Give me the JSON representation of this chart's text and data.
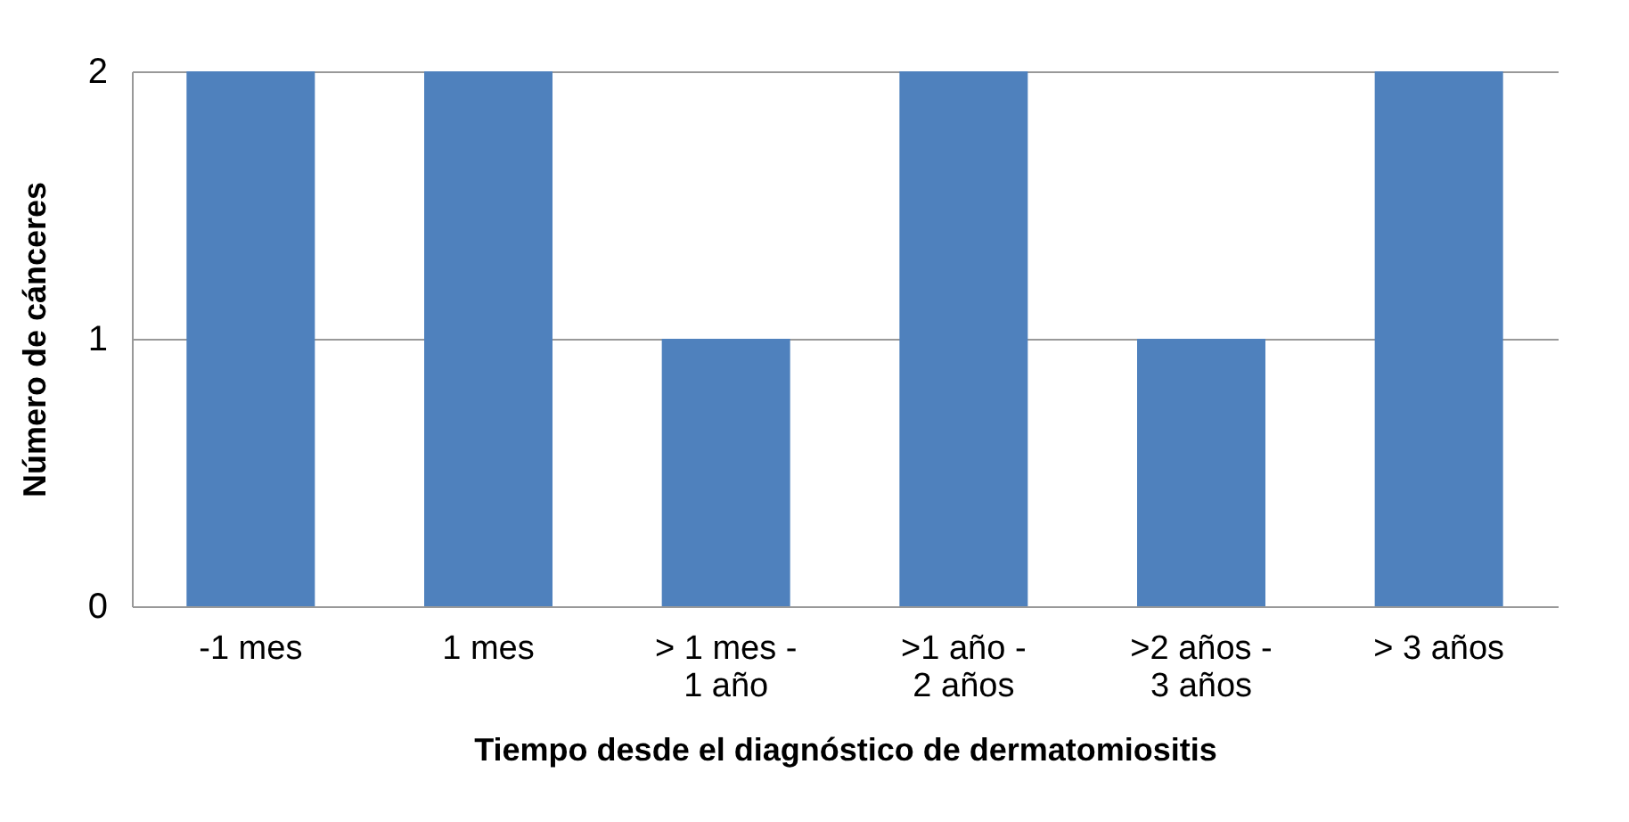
{
  "chart_data": {
    "type": "bar",
    "xlabel": "Tiempo desde el diagnóstico de dermatomiositis",
    "ylabel": "Número de cánceres",
    "categories": [
      "-1 mes",
      "1 mes",
      "> 1 mes - 1 año",
      ">1 año - 2 años",
      ">2 años - 3 años",
      "> 3 años"
    ],
    "values": [
      2,
      2,
      1,
      2,
      1,
      2
    ],
    "color": "#4f81bd",
    "ylim": [
      0,
      2
    ],
    "yticks": [
      0,
      1,
      2
    ],
    "grid": "y"
  }
}
